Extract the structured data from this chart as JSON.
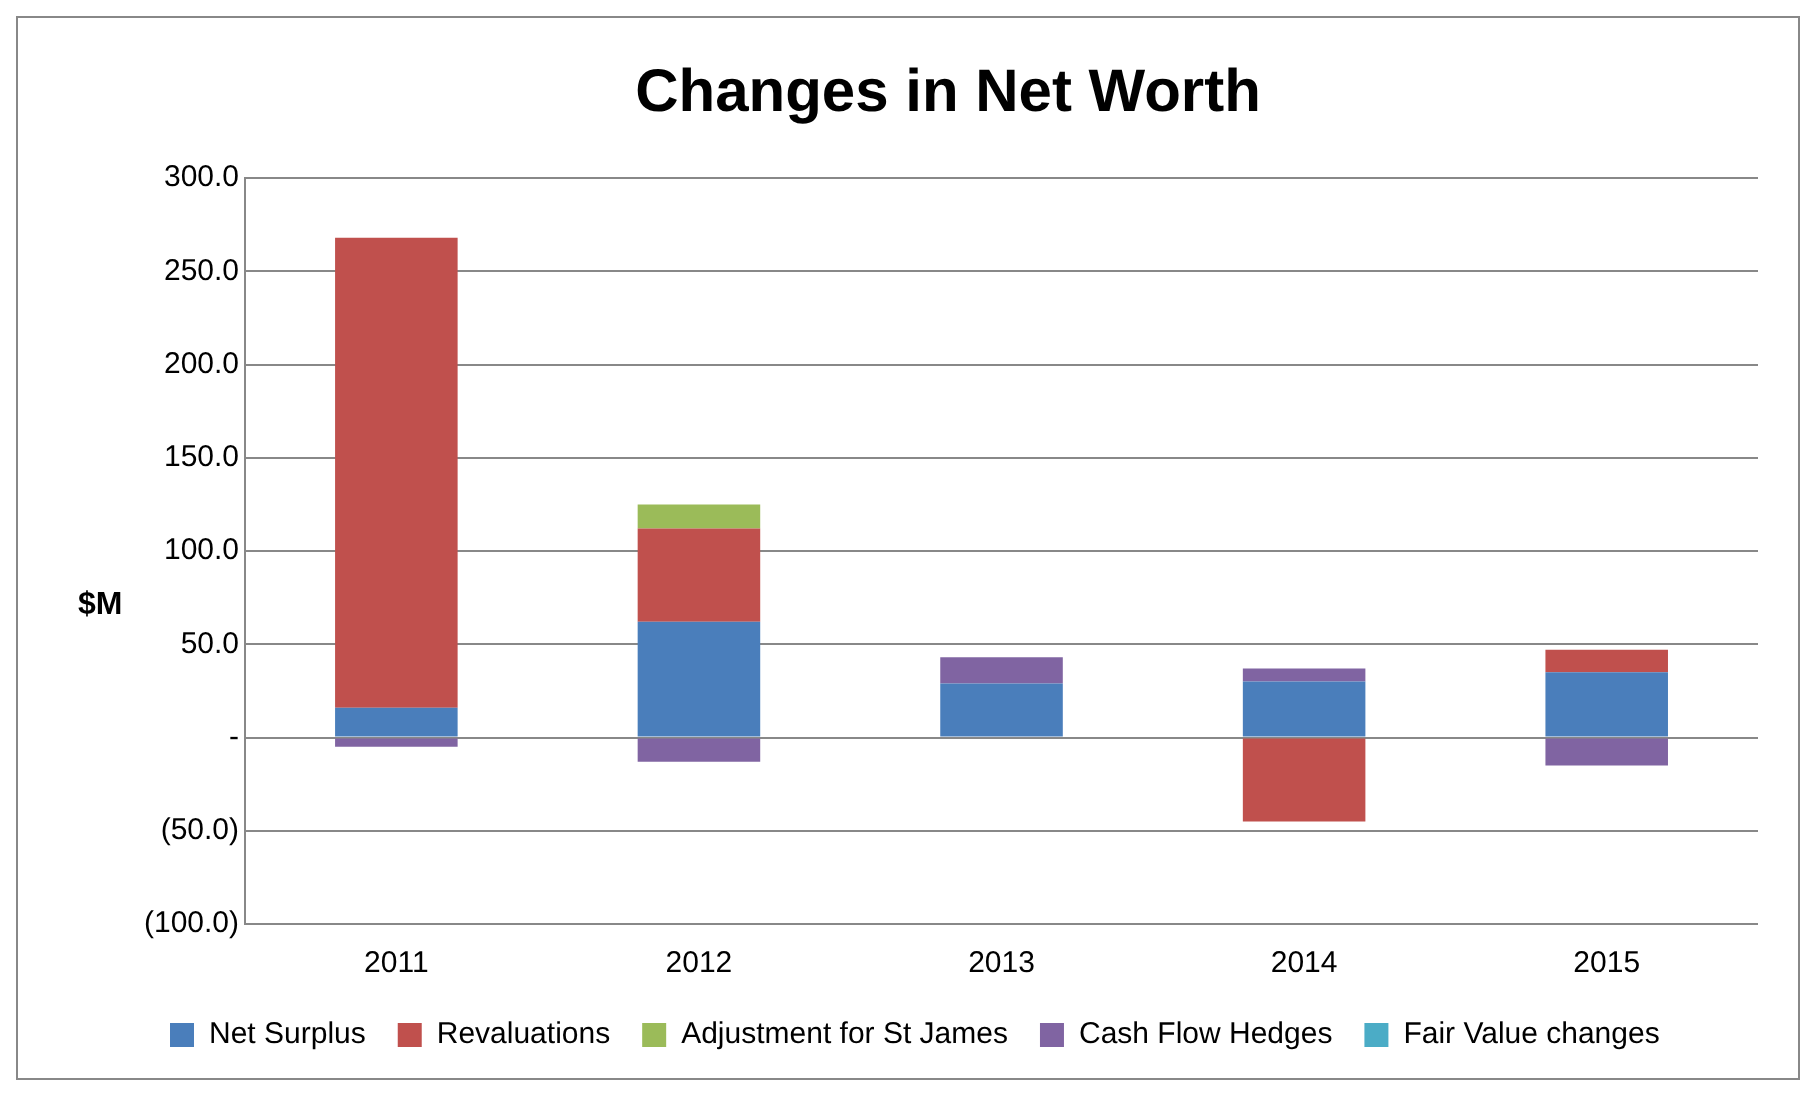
{
  "chart_data": {
    "type": "bar",
    "title": "Changes in Net Worth",
    "ylabel": "$M",
    "stacked": true,
    "categories": [
      "2011",
      "2012",
      "2013",
      "2014",
      "2015"
    ],
    "series": [
      {
        "name": "Net Surplus",
        "color": "#4a7ebb",
        "values": [
          16,
          62,
          29,
          30,
          35
        ]
      },
      {
        "name": "Revaluations",
        "color": "#c0504d",
        "values": [
          252,
          50,
          null,
          -45,
          12
        ]
      },
      {
        "name": "Adjustment for St James",
        "color": "#9bbb59",
        "values": [
          null,
          13,
          null,
          null,
          null
        ]
      },
      {
        "name": "Cash Flow Hedges",
        "color": "#8064a2",
        "values": [
          -5,
          -13,
          14,
          7,
          -15
        ]
      },
      {
        "name": "Fair Value changes",
        "color": "#4bacc6",
        "values": [
          null,
          null,
          null,
          null,
          null
        ]
      }
    ],
    "ylim": [
      -100,
      300
    ],
    "yticks": [
      {
        "value": -100,
        "label": "(100.0)"
      },
      {
        "value": -50,
        "label": "(50.0)"
      },
      {
        "value": 0,
        "label": "-"
      },
      {
        "value": 50,
        "label": "50.0"
      },
      {
        "value": 100,
        "label": "100.0"
      },
      {
        "value": 150,
        "label": "150.0"
      },
      {
        "value": 200,
        "label": "200.0"
      },
      {
        "value": 250,
        "label": "250.0"
      },
      {
        "value": 300,
        "label": "300.0"
      }
    ],
    "grid": "y",
    "legend": "bottom"
  }
}
